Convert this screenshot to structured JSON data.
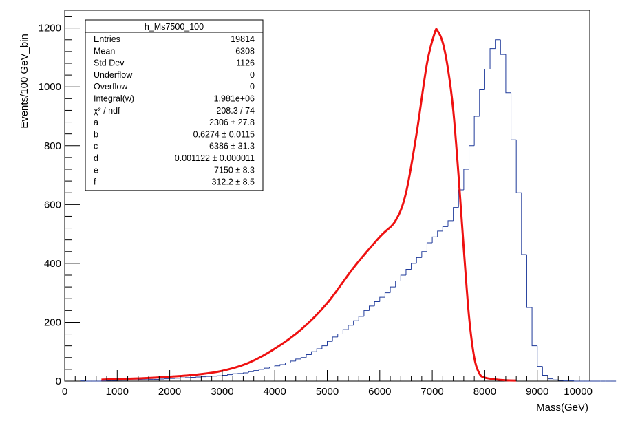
{
  "chart_data": {
    "type": "histogram",
    "xlabel": "Mass(GeV)",
    "ylabel": "Events/100 GeV_bin",
    "xlim": [
      0,
      10000
    ],
    "ylim": [
      0,
      1260
    ],
    "x_ticks": [
      "0",
      "1000",
      "2000",
      "3000",
      "4000",
      "5000",
      "6000",
      "7000",
      "8000",
      "9000",
      "10000"
    ],
    "y_ticks": [
      "0",
      "200",
      "400",
      "600",
      "800",
      "1000",
      "1200"
    ],
    "grid": false,
    "legend": "top-left",
    "histogram": {
      "name": "h_Ms7500_100",
      "bin_width": 100,
      "x_start": 300,
      "values": [
        1,
        0,
        0,
        0,
        1,
        2,
        2,
        3,
        3,
        4,
        4,
        5,
        5,
        6,
        6,
        7,
        8,
        9,
        10,
        11,
        12,
        13,
        14,
        15,
        16,
        17,
        18,
        20,
        22,
        25,
        26,
        28,
        32,
        36,
        40,
        44,
        48,
        52,
        56,
        62,
        68,
        75,
        80,
        90,
        100,
        110,
        120,
        135,
        150,
        160,
        175,
        190,
        205,
        220,
        240,
        255,
        270,
        285,
        300,
        320,
        340,
        360,
        380,
        400,
        420,
        440,
        470,
        490,
        510,
        525,
        545,
        590,
        650,
        720,
        800,
        900,
        990,
        1060,
        1130,
        1160,
        1110,
        980,
        820,
        640,
        430,
        250,
        120,
        50,
        20,
        8,
        4,
        2,
        1,
        1,
        0,
        0,
        0,
        0,
        0,
        0,
        0,
        0
      ]
    },
    "fit": {
      "name": "fit",
      "x": [
        700,
        1000,
        1500,
        2000,
        2500,
        3000,
        3500,
        4000,
        4500,
        5000,
        5500,
        6000,
        6300,
        6500,
        6700,
        6900,
        7050,
        7100,
        7200,
        7300,
        7400,
        7500,
        7600,
        7700,
        7800,
        7900,
        8000,
        8200,
        8400,
        8600
      ],
      "y": [
        5,
        7,
        10,
        15,
        22,
        35,
        62,
        110,
        175,
        265,
        385,
        490,
        545,
        640,
        840,
        1080,
        1185,
        1190,
        1150,
        1060,
        920,
        700,
        450,
        220,
        80,
        25,
        12,
        6,
        3,
        2
      ]
    },
    "stats": {
      "title": "h_Ms7500_100",
      "rows": [
        {
          "label": "Entries",
          "value": "19814"
        },
        {
          "label": "Mean",
          "value": "6308"
        },
        {
          "label": "Std Dev",
          "value": "1126"
        },
        {
          "label": "Underflow",
          "value": "0"
        },
        {
          "label": "Overflow",
          "value": "0"
        },
        {
          "label": "Integral(w)",
          "value": "1.981e+06"
        },
        {
          "label": "χ² / ndf",
          "value": "208.3 / 74"
        },
        {
          "label": "a",
          "value": "2306 ± 27.8"
        },
        {
          "label": "b",
          "value": "0.6274 ± 0.0115"
        },
        {
          "label": "c",
          "value": "6386 ± 31.3"
        },
        {
          "label": "d",
          "value": "0.001122 ± 0.000011"
        },
        {
          "label": "e",
          "value": "7150 ± 8.3"
        },
        {
          "label": "f",
          "value": "312.2 ± 8.5"
        }
      ]
    },
    "colors": {
      "histogram": "#1f3a9a",
      "fit": "#ee1111",
      "frame": "#000000"
    }
  }
}
